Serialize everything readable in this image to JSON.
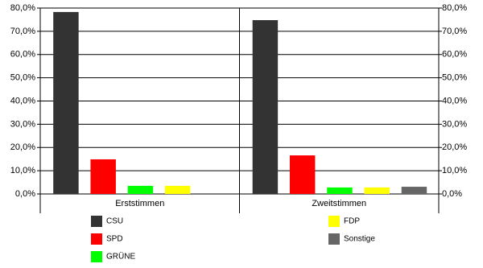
{
  "chart_data": {
    "type": "bar",
    "categories": [
      "Erststimmen",
      "Zweitstimmen"
    ],
    "series": [
      {
        "name": "CSU",
        "color": "#333333",
        "values": [
          78.3,
          74.8
        ]
      },
      {
        "name": "SPD",
        "color": "#ff0000",
        "values": [
          14.9,
          16.6
        ]
      },
      {
        "name": "GRÜNE",
        "color": "#00ff00",
        "values": [
          3.5,
          2.8
        ]
      },
      {
        "name": "FDP",
        "color": "#ffff00",
        "values": [
          3.5,
          2.8
        ]
      },
      {
        "name": "Sonstige",
        "color": "#666666",
        "values": [
          null,
          3.1
        ]
      }
    ],
    "ylim": [
      0,
      80
    ],
    "yticks": [
      {
        "value": 0,
        "label": "0,0%"
      },
      {
        "value": 10,
        "label": "10,0%"
      },
      {
        "value": 20,
        "label": "20,0%"
      },
      {
        "value": 30,
        "label": "30,0%"
      },
      {
        "value": 40,
        "label": "40,0%"
      },
      {
        "value": 50,
        "label": "50,0%"
      },
      {
        "value": 60,
        "label": "60,0%"
      },
      {
        "value": 70,
        "label": "70,0%"
      },
      {
        "value": 80,
        "label": "80,0%"
      }
    ],
    "grid": true
  }
}
